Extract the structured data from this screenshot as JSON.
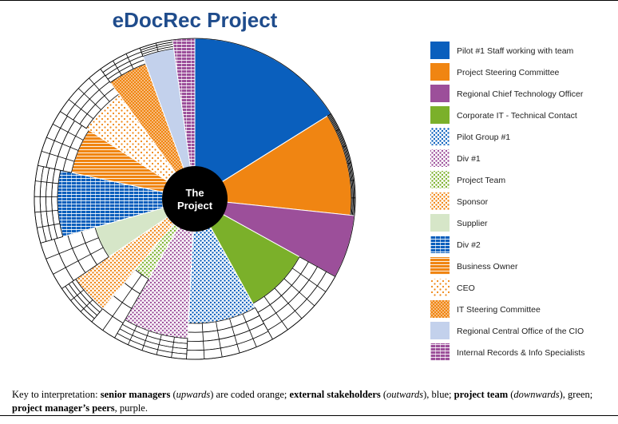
{
  "diagram": {
    "title": "eDocRec Project",
    "center_label_line1": "The",
    "center_label_line2": "Project",
    "legend": [
      {
        "label": "Pilot #1 Staff working with team",
        "color": "#0a5fbd",
        "pattern": "solid"
      },
      {
        "label": "Project Steering Committee",
        "color": "#f08512",
        "pattern": "solid"
      },
      {
        "label": "Regional Chief Technology Officer",
        "color": "#9c4f9a",
        "pattern": "solid"
      },
      {
        "label": "Corporate IT - Technical Contact",
        "color": "#7bb02a",
        "pattern": "solid"
      },
      {
        "label": "Pilot Group #1",
        "color": "#0a5fbd",
        "pattern": "dots"
      },
      {
        "label": "Div #1",
        "color": "#9c4f9a",
        "pattern": "dots"
      },
      {
        "label": "Project Team",
        "color": "#7bb02a",
        "pattern": "dots"
      },
      {
        "label": "Sponsor",
        "color": "#f08512",
        "pattern": "dots"
      },
      {
        "label": "Supplier",
        "color": "#d6e6c8",
        "pattern": "solid"
      },
      {
        "label": "Div #2",
        "color": "#0a5fbd",
        "pattern": "hlines"
      },
      {
        "label": "Business Owner",
        "color": "#f08512",
        "pattern": "hlines"
      },
      {
        "label": "CEO",
        "color": "#f08512",
        "pattern": "sparse"
      },
      {
        "label": "IT Steering Committee",
        "color": "#f08512",
        "pattern": "dense"
      },
      {
        "label": "Regional Central Office of the CIO",
        "color": "#c3d1ec",
        "pattern": "solid"
      },
      {
        "label": "Internal Records & Info Specialists",
        "color": "#9c4f9a",
        "pattern": "hlines"
      }
    ]
  },
  "caption": {
    "p1": "Key to interpretation: ",
    "b1": "senior managers",
    "p2": " (",
    "i1": "upwards",
    "p3": ") are coded orange; ",
    "b2": "external stakeholders",
    "p4": " (",
    "i2": "outwards",
    "p5": "), blue; ",
    "b3": "project team",
    "p6": " (",
    "i3": "downwards",
    "p7": "), green; ",
    "b4": "project manager’s peers",
    "p8": ", purple."
  }
}
